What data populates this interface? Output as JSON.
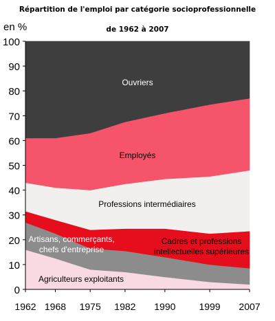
{
  "chart_data": {
    "type": "area",
    "title": "Répartition de l'emploi par catégorie socioprofessionnelle",
    "subtitle": "de 1962 à 2007",
    "ylabel": "en %",
    "xlabel": "",
    "ylim": [
      0,
      100
    ],
    "yticks": [
      0,
      10,
      20,
      30,
      40,
      50,
      60,
      70,
      80,
      90,
      100
    ],
    "x": [
      1962,
      1968,
      1975,
      1982,
      1990,
      1999,
      2007
    ],
    "stacked": true,
    "grid": false,
    "legend": "none",
    "series": [
      {
        "name": "Agriculteurs exploitants",
        "color": "#f9d9e2",
        "values": [
          16,
          12.5,
          8,
          7,
          5,
          3,
          2
        ]
      },
      {
        "name": "Artisans, commerçants, chefs d'entreprise",
        "color": "#8c8c8c",
        "values": [
          11,
          10,
          8.5,
          8.5,
          8,
          7,
          6.5
        ]
      },
      {
        "name": "Cadres et professions intellectuelles supérieures",
        "color": "#e60d1c",
        "values": [
          4.5,
          5.5,
          7.5,
          9,
          11.5,
          12.5,
          15
        ]
      },
      {
        "name": "Professions intermédiaires",
        "color": "#f2f0ee",
        "values": [
          11.5,
          13,
          16,
          18,
          20,
          23,
          24.5
        ]
      },
      {
        "name": "Employés",
        "color": "#f5546b",
        "values": [
          18,
          20,
          23,
          25,
          26.5,
          29,
          29
        ]
      },
      {
        "name": "Ouvriers",
        "color": "#3e3e3e",
        "values": [
          39,
          39,
          37,
          32.5,
          29,
          25.5,
          23
        ]
      }
    ]
  }
}
